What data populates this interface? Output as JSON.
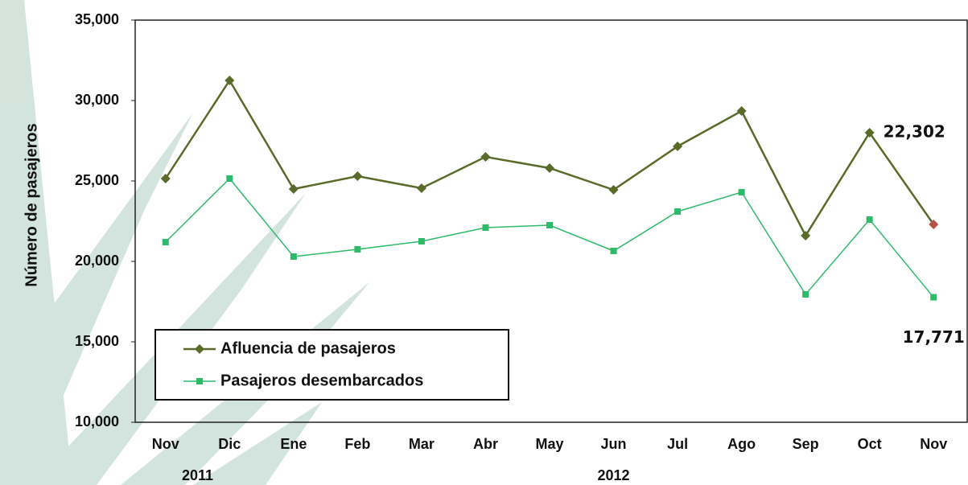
{
  "chart_data": {
    "type": "line",
    "y_label": "Número de pasajeros",
    "categories": [
      "Nov",
      "Dic",
      "Ene",
      "Feb",
      "Mar",
      "Abr",
      "May",
      "Jun",
      "Jul",
      "Ago",
      "Sep",
      "Oct",
      "Nov"
    ],
    "x_groups": [
      {
        "label": "2011",
        "span": 2
      },
      {
        "label": "2012",
        "span": 11
      }
    ],
    "series": [
      {
        "name": "Afluencia de pasajeros",
        "color": "#5a6a28",
        "marker": "diamond",
        "last_marker_color": "#b5524a",
        "values": [
          25150,
          31250,
          24500,
          25300,
          24550,
          26500,
          25800,
          24450,
          27150,
          29350,
          21600,
          28000,
          22302
        ],
        "value_labels": [
          null,
          null,
          null,
          null,
          null,
          null,
          null,
          null,
          null,
          null,
          null,
          null,
          "22,302"
        ]
      },
      {
        "name": "Pasajeros desembarcados",
        "color": "#2dbb6a",
        "marker": "square",
        "values": [
          21200,
          25150,
          20300,
          20750,
          21250,
          22100,
          22250,
          20650,
          23100,
          24300,
          17950,
          22600,
          17771
        ],
        "value_labels": [
          null,
          null,
          null,
          null,
          null,
          null,
          null,
          null,
          null,
          null,
          null,
          null,
          "17,771"
        ]
      }
    ],
    "ylim": [
      10000,
      35000
    ],
    "yticks": [
      {
        "value": 10000,
        "label": "10,000"
      },
      {
        "value": 15000,
        "label": "15,000"
      },
      {
        "value": 20000,
        "label": "20,000"
      },
      {
        "value": 25000,
        "label": "25,000"
      },
      {
        "value": 30000,
        "label": "30,000"
      },
      {
        "value": 35000,
        "label": "35,000"
      }
    ],
    "legend": "lower left"
  }
}
